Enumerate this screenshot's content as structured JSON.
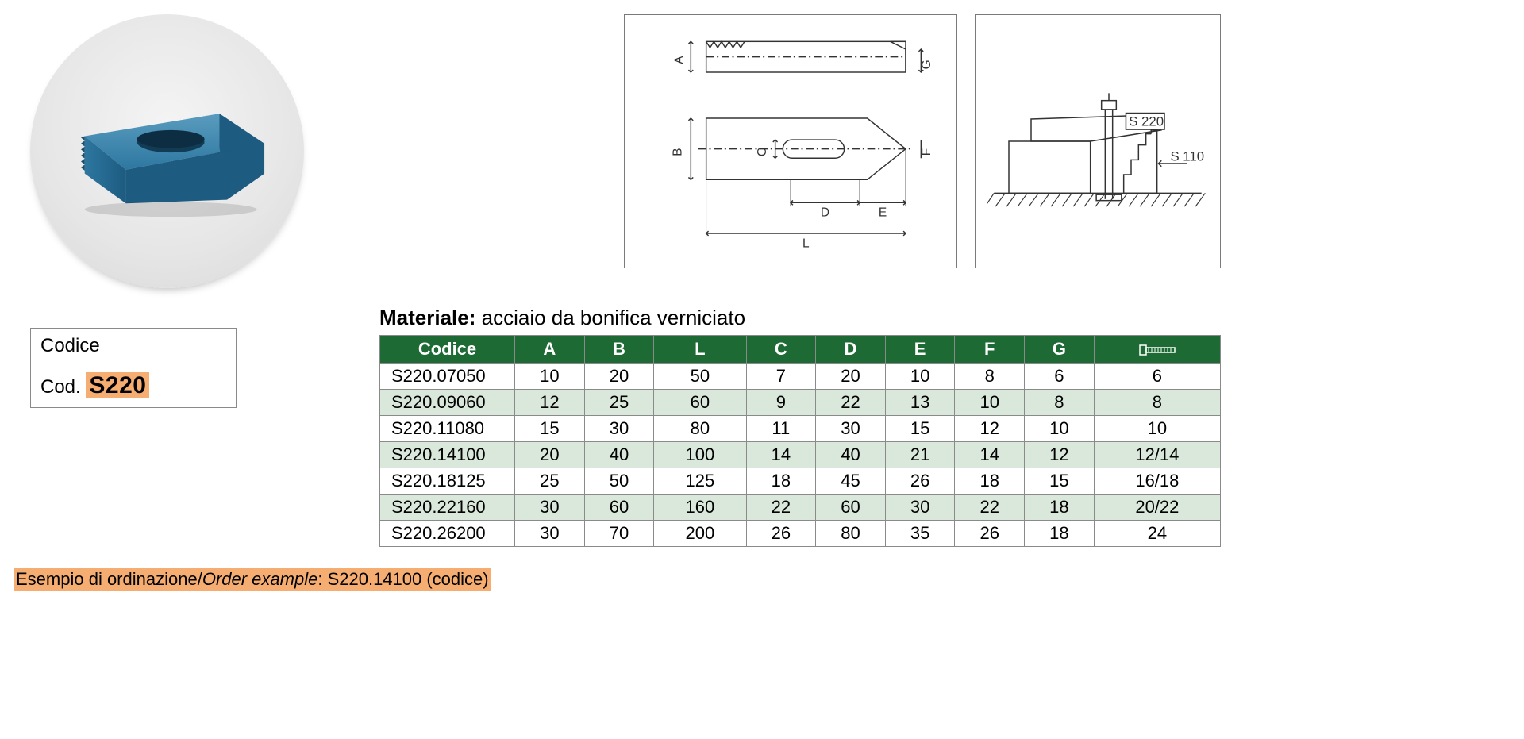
{
  "codice_box": {
    "header": "Codice",
    "prefix": "Cod.",
    "code": "S220"
  },
  "materiale": {
    "label": "Materiale:",
    "text": "acciaio da bonifica verniciato"
  },
  "diagram2_labels": {
    "s220": "S 220",
    "s110": "S 110"
  },
  "diagram1_dims": [
    "A",
    "G",
    "B",
    "C",
    "F",
    "D",
    "E",
    "L"
  ],
  "table": {
    "header_bg": "#1e6a34",
    "header_fg": "#ffffff",
    "row_bg": "#ffffff",
    "row_alt_bg": "#dae8db",
    "border_color": "#8a8a8a",
    "columns": [
      "Codice",
      "A",
      "B",
      "L",
      "C",
      "D",
      "E",
      "F",
      "G",
      ""
    ],
    "bolt_icon_col": 9,
    "rows": [
      {
        "codice": "S220.07050",
        "A": "10",
        "B": "20",
        "L": "50",
        "C": "7",
        "D": "20",
        "E": "10",
        "F": "8",
        "G": "6",
        "bolt": "6"
      },
      {
        "codice": "S220.09060",
        "A": "12",
        "B": "25",
        "L": "60",
        "C": "9",
        "D": "22",
        "E": "13",
        "F": "10",
        "G": "8",
        "bolt": "8"
      },
      {
        "codice": "S220.11080",
        "A": "15",
        "B": "30",
        "L": "80",
        "C": "11",
        "D": "30",
        "E": "15",
        "F": "12",
        "G": "10",
        "bolt": "10"
      },
      {
        "codice": "S220.14100",
        "A": "20",
        "B": "40",
        "L": "100",
        "C": "14",
        "D": "40",
        "E": "21",
        "F": "14",
        "G": "12",
        "bolt": "12/14"
      },
      {
        "codice": "S220.18125",
        "A": "25",
        "B": "50",
        "L": "125",
        "C": "18",
        "D": "45",
        "E": "26",
        "F": "18",
        "G": "15",
        "bolt": "16/18"
      },
      {
        "codice": "S220.22160",
        "A": "30",
        "B": "60",
        "L": "160",
        "C": "22",
        "D": "60",
        "E": "30",
        "F": "22",
        "G": "18",
        "bolt": "20/22"
      },
      {
        "codice": "S220.26200",
        "A": "30",
        "B": "70",
        "L": "200",
        "C": "26",
        "D": "80",
        "E": "35",
        "F": "26",
        "G": "18",
        "bolt": "24"
      }
    ]
  },
  "order_example": {
    "label_it": "Esempio di ordinazione",
    "label_en": "Order example",
    "value": "S220.14100 (codice)"
  },
  "product_color": "#2d77a0",
  "product_color_dark": "#1d5b80",
  "product_color_light": "#5a9cbf"
}
